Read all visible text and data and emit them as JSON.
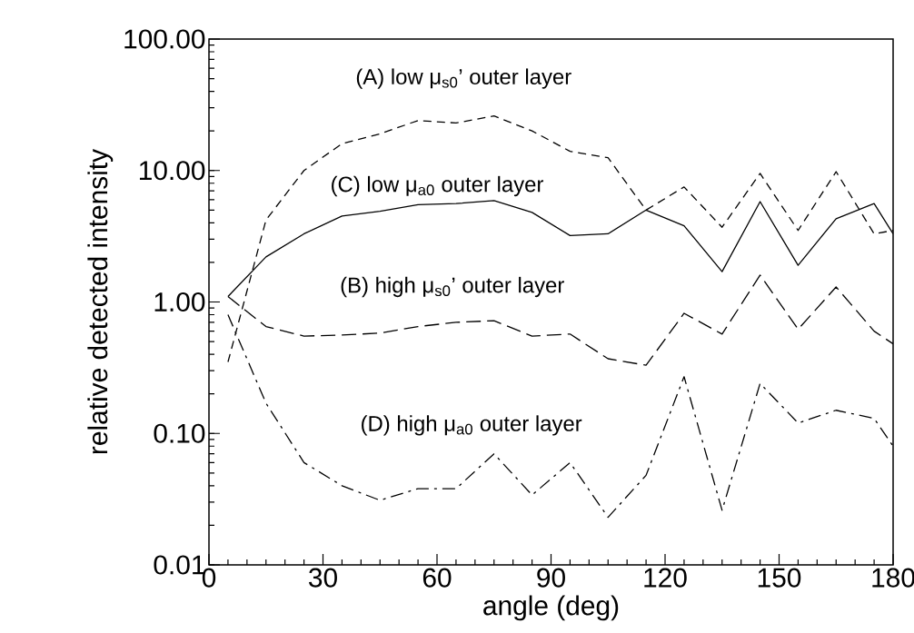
{
  "chart_data": {
    "type": "line",
    "xlabel": "angle (deg)",
    "ylabel": "relative detected intensity",
    "log": "y",
    "grid": false,
    "legend": false,
    "marker": "none",
    "x": [
      5,
      15,
      25,
      35,
      45,
      55,
      65,
      75,
      85,
      95,
      105,
      115,
      125,
      135,
      145,
      155,
      165,
      175,
      180
    ],
    "xlim": [
      0,
      180
    ],
    "xticks": [
      0,
      30,
      60,
      90,
      120,
      150,
      180
    ],
    "ylim": [
      0.01,
      100
    ],
    "yticks": [
      {
        "value": 0.01,
        "label": "0.01"
      },
      {
        "value": 0.1,
        "label": "0.10"
      },
      {
        "value": 1,
        "label": "1.00"
      },
      {
        "value": 10,
        "label": "10.00"
      },
      {
        "value": 100,
        "label": "100.00"
      }
    ],
    "series": [
      {
        "name": "(A) low μ$_{s0}$’ outer layer",
        "color": "#000000",
        "line_style": "dashed",
        "values": [
          0.35,
          4.2,
          10,
          16,
          19,
          24,
          23,
          26,
          20,
          14,
          12.5,
          5,
          7.5,
          3.7,
          9.5,
          3.5,
          9.8,
          3.3,
          3.5
        ]
      },
      {
        "name": "(C) low μ$_{a0}$ outer layer",
        "color": "#000000",
        "line_style": "solid",
        "values": [
          1.1,
          2.2,
          3.3,
          4.5,
          4.9,
          5.5,
          5.6,
          5.9,
          4.8,
          3.2,
          3.3,
          5.0,
          3.8,
          1.7,
          5.8,
          1.9,
          4.3,
          5.6,
          3.3
        ]
      },
      {
        "name": "(B) high μ$_{s0}$’ outer layer",
        "color": "#000000",
        "line_style": "dashed",
        "values": [
          1.1,
          0.65,
          0.55,
          0.56,
          0.58,
          0.65,
          0.7,
          0.72,
          0.55,
          0.57,
          0.37,
          0.33,
          0.82,
          0.57,
          1.6,
          0.62,
          1.3,
          0.6,
          0.48
        ]
      },
      {
        "name": "(D) high μ$_{a0}$ outer layer",
        "color": "#000000",
        "line_style": "dashed",
        "values": [
          0.8,
          0.17,
          0.06,
          0.04,
          0.031,
          0.038,
          0.038,
          0.07,
          0.034,
          0.06,
          0.023,
          0.048,
          0.27,
          0.026,
          0.24,
          0.12,
          0.15,
          0.13,
          0.08
        ]
      }
    ]
  }
}
